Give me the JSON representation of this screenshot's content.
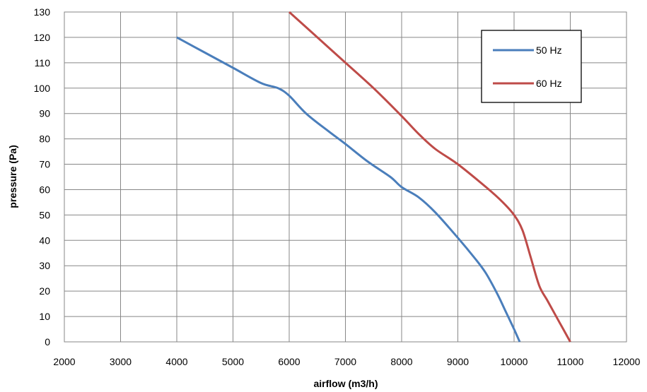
{
  "chart_data": {
    "type": "line",
    "title": "",
    "xlabel": "airflow (m3/h)",
    "ylabel": "pressure (Pa)",
    "xlim": [
      2000,
      12000
    ],
    "ylim": [
      0,
      130
    ],
    "xticks": [
      2000,
      3000,
      4000,
      5000,
      6000,
      7000,
      8000,
      9000,
      10000,
      11000,
      12000
    ],
    "yticks": [
      0,
      10,
      20,
      30,
      40,
      50,
      60,
      70,
      80,
      90,
      100,
      110,
      120,
      130
    ],
    "grid": true,
    "legend_position": "top-right",
    "series": [
      {
        "name": "50 Hz",
        "color": "#4a7ebb",
        "x": [
          4000,
          4500,
          5000,
          5500,
          5800,
          6000,
          6300,
          6700,
          7000,
          7400,
          7800,
          8000,
          8300,
          8600,
          9000,
          9300,
          9500,
          9700,
          9850,
          10000,
          10100
        ],
        "y": [
          120,
          114,
          108,
          102,
          100,
          97,
          90,
          83,
          78,
          71,
          65,
          61,
          57,
          51,
          41,
          33,
          27,
          19,
          12,
          5,
          0
        ]
      },
      {
        "name": "60 Hz",
        "color": "#be4b48",
        "x": [
          6000,
          6500,
          7000,
          7500,
          8000,
          8300,
          8600,
          9000,
          9500,
          9800,
          10000,
          10150,
          10300,
          10450,
          10600,
          10800,
          11000
        ],
        "y": [
          130,
          120,
          110,
          100,
          89,
          82,
          76,
          70,
          61,
          55,
          50,
          44,
          33,
          22,
          16,
          8,
          0
        ]
      }
    ]
  }
}
